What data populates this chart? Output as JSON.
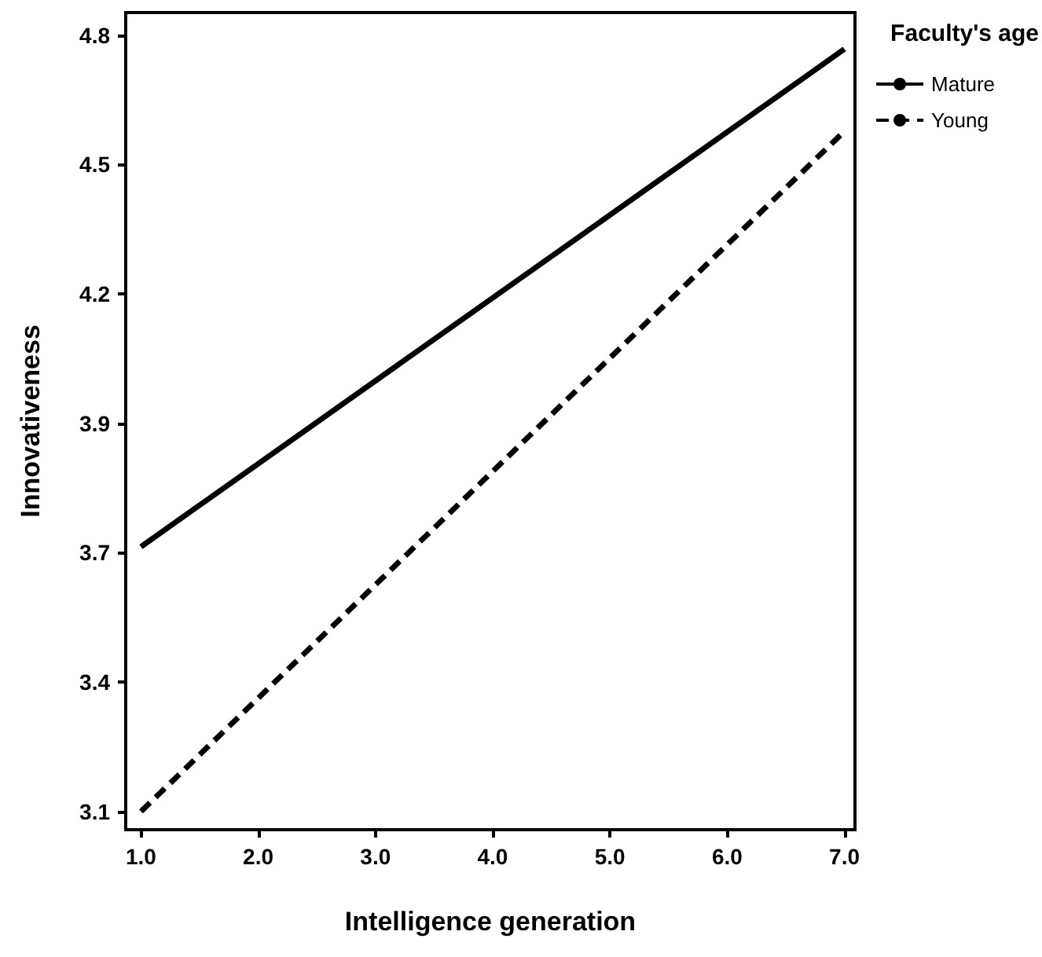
{
  "chart_data": {
    "type": "line",
    "xlabel": "Intelligence generation",
    "ylabel": "Innovativeness",
    "legend_title": "Faculty's age",
    "legend": "top right",
    "grid": false,
    "marker": "none",
    "x": [
      1,
      7
    ],
    "series": [
      {
        "name": "Mature",
        "color": "#000000",
        "line_style": "solid",
        "values": [
          3.68,
          4.77
        ]
      },
      {
        "name": "Young",
        "color": "#000000",
        "line_style": "dashed",
        "values": [
          3.1,
          4.59
        ]
      }
    ],
    "xlim": [
      0.87,
      7.09
    ],
    "ylim": [
      3.06,
      4.85
    ],
    "xticks": [
      {
        "value": 1,
        "label": "1.0"
      },
      {
        "value": 2,
        "label": "2.0"
      },
      {
        "value": 3,
        "label": "3.0"
      },
      {
        "value": 4,
        "label": "4.0"
      },
      {
        "value": 5,
        "label": "5.0"
      },
      {
        "value": 6,
        "label": "6.0"
      },
      {
        "value": 7,
        "label": "7.0"
      }
    ],
    "yticks": [
      {
        "value": 3.1,
        "label": "3.1"
      },
      {
        "value": 3.383,
        "label": "3.4"
      },
      {
        "value": 3.667,
        "label": "3.7"
      },
      {
        "value": 3.95,
        "label": "3.9"
      },
      {
        "value": 4.233,
        "label": "4.2"
      },
      {
        "value": 4.517,
        "label": "4.5"
      },
      {
        "value": 4.8,
        "label": "4.8"
      }
    ]
  }
}
